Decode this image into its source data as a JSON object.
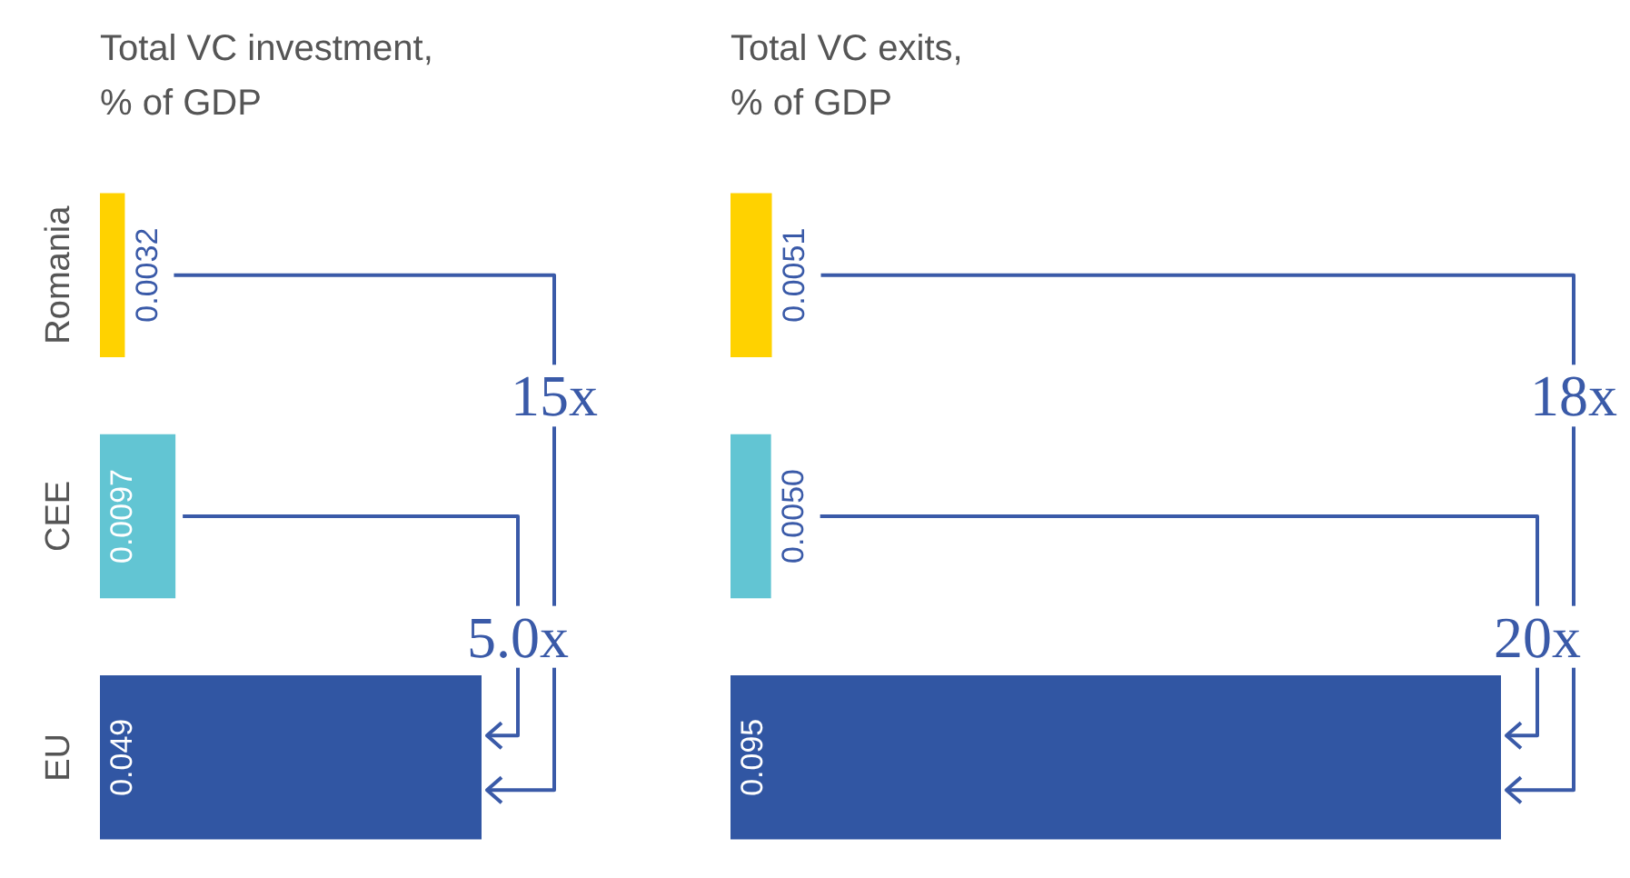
{
  "chart_data": [
    {
      "type": "bar",
      "orientation": "horizontal",
      "title": "Total VC investment,\n% of GDP",
      "categories": [
        "Romania",
        "CEE",
        "EU"
      ],
      "values": [
        0.0032,
        0.0097,
        0.049
      ],
      "colors": [
        "#ffd200",
        "#62c5d3",
        "#3156a3"
      ],
      "data_labels": true,
      "tick_labels": "y",
      "annotations": [
        "15x",
        "5.0x"
      ]
    },
    {
      "type": "bar",
      "orientation": "horizontal",
      "title": "Total VC exits,\n% of GDP",
      "categories": [
        null,
        null,
        null
      ],
      "values": [
        0.0051,
        0.005,
        0.095
      ],
      "value_labels": [
        "0.0051",
        "0.0050",
        "0.095"
      ],
      "colors": [
        "#ffd200",
        "#62c5d3",
        "#3156a3"
      ],
      "tick_labels": false,
      "annotations": [
        "18x",
        "20x"
      ]
    }
  ]
}
